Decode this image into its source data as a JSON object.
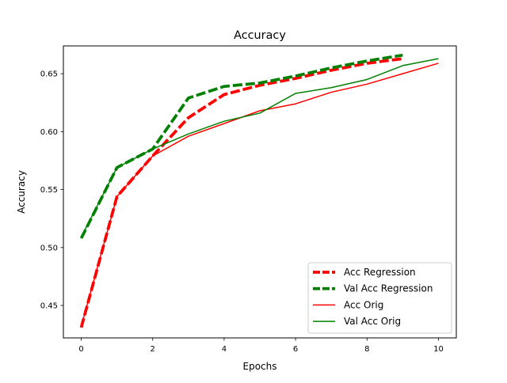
{
  "chart_data": {
    "type": "line",
    "title": "Accuracy",
    "xlabel": "Epochs",
    "ylabel": "Accuracy",
    "xlim": [
      -0.5,
      10.5
    ],
    "ylim": [
      0.422,
      0.674
    ],
    "xticks": [
      0,
      2,
      4,
      6,
      8,
      10
    ],
    "xtick_labels": [
      "0",
      "2",
      "4",
      "6",
      "8",
      "10"
    ],
    "yticks": [
      0.45,
      0.5,
      0.55,
      0.6,
      0.65
    ],
    "ytick_labels": [
      "0.45",
      "0.50",
      "0.55",
      "0.60",
      "0.65"
    ],
    "grid": false,
    "legend_position": "lower-right",
    "series": [
      {
        "name": "Acc Regression",
        "color": "#ff0000",
        "style": "dashed",
        "x": [
          0,
          1,
          2,
          3,
          4,
          5,
          6,
          7,
          8,
          9
        ],
        "y": [
          0.431,
          0.544,
          0.579,
          0.612,
          0.632,
          0.64,
          0.646,
          0.653,
          0.659,
          0.663
        ]
      },
      {
        "name": "Val Acc Regression",
        "color": "#008000",
        "style": "dashed",
        "x": [
          0,
          1,
          2,
          3,
          4,
          5,
          6,
          7,
          8,
          9
        ],
        "y": [
          0.508,
          0.569,
          0.585,
          0.629,
          0.639,
          0.642,
          0.648,
          0.655,
          0.661,
          0.666
        ]
      },
      {
        "name": "Acc Orig",
        "color": "#ff0000",
        "style": "solid",
        "x": [
          0,
          1,
          2,
          3,
          4,
          5,
          6,
          7,
          8,
          9,
          10
        ],
        "y": [
          0.432,
          0.544,
          0.579,
          0.596,
          0.607,
          0.618,
          0.624,
          0.634,
          0.641,
          0.65,
          0.659
        ]
      },
      {
        "name": "Val Acc Orig",
        "color": "#008000",
        "style": "solid",
        "x": [
          0,
          1,
          2,
          3,
          4,
          5,
          6,
          7,
          8,
          9,
          10
        ],
        "y": [
          0.509,
          0.569,
          0.585,
          0.598,
          0.609,
          0.616,
          0.633,
          0.638,
          0.645,
          0.657,
          0.663
        ]
      }
    ]
  }
}
